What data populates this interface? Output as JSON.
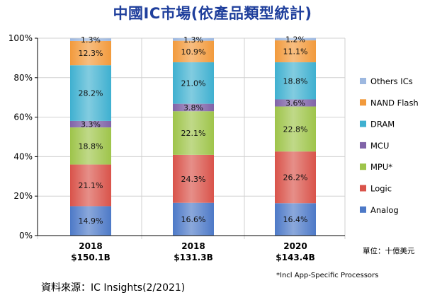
{
  "chart_data": {
    "type": "bar",
    "stacked": true,
    "title": "中國IC市場(依產品類型統計)",
    "categories": [
      "2018",
      "2018",
      "2020"
    ],
    "category_sublabels": [
      "$150.1B",
      "$131.3B",
      "$143.4B"
    ],
    "ylim": [
      0,
      100
    ],
    "yticks": [
      0,
      20,
      40,
      60,
      80,
      100
    ],
    "ytick_labels": [
      "0%",
      "20%",
      "40%",
      "60%",
      "80%",
      "100%"
    ],
    "grid": true,
    "legend_position": "right",
    "series": [
      {
        "name": "Analog",
        "color": "#4d79c7",
        "values": [
          14.9,
          16.6,
          16.4
        ],
        "labels": [
          "14.9%",
          "16.6%",
          "16.4%"
        ]
      },
      {
        "name": "Logic",
        "color": "#d9534a",
        "values": [
          21.1,
          24.3,
          26.2
        ],
        "labels": [
          "21.1%",
          "24.3%",
          "26.2%"
        ]
      },
      {
        "name": "MPU*",
        "color": "#9ec44a",
        "values": [
          18.8,
          22.1,
          22.8
        ],
        "labels": [
          "18.8%",
          "22.1%",
          "22.8%"
        ]
      },
      {
        "name": "MCU",
        "color": "#8063a8",
        "values": [
          3.3,
          3.8,
          3.6
        ],
        "labels": [
          "3.3%",
          "3.8%",
          "3.6%"
        ]
      },
      {
        "name": "DRAM",
        "color": "#3fb0d0",
        "values": [
          28.2,
          21.0,
          18.8
        ],
        "labels": [
          "28.2%",
          "21.0%",
          "18.8%"
        ]
      },
      {
        "name": "NAND Flash",
        "color": "#f29a3c",
        "values": [
          12.3,
          10.9,
          11.1
        ],
        "labels": [
          "12.3%",
          "10.9%",
          "11.1%"
        ]
      },
      {
        "name": "Others ICs",
        "color": "#9db8e0",
        "values": [
          1.3,
          1.3,
          1.2
        ],
        "labels": [
          "1.3%",
          "1.3%",
          "1.2%"
        ]
      }
    ],
    "legend_order": [
      "Others ICs",
      "NAND Flash",
      "DRAM",
      "MCU",
      "MPU*",
      "Logic",
      "Analog"
    ],
    "annotations": {
      "unit": "單位：十億美元",
      "footnote": "*Incl App-Specific Processors",
      "source": "資料來源：IC Insights(2/2021)"
    }
  }
}
